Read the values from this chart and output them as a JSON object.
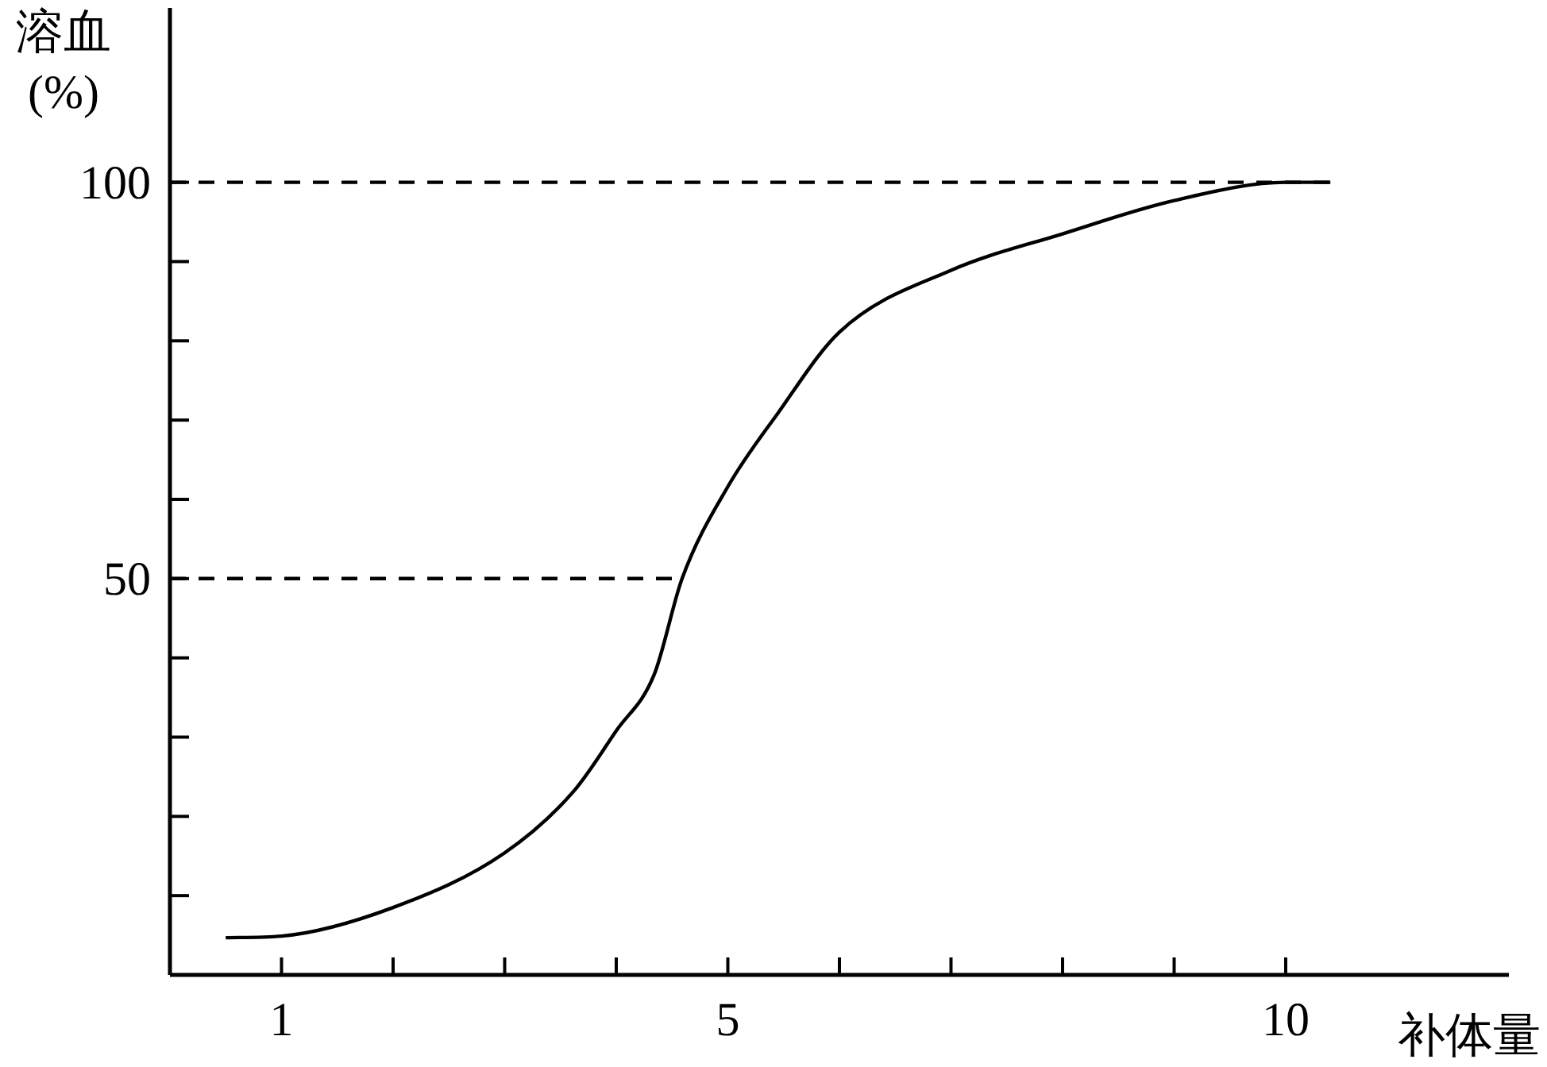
{
  "chart_data": {
    "type": "line",
    "ylabel": "溶血 (%)",
    "xlabel": "补体量",
    "xlim": [
      0,
      12
    ],
    "ylim": [
      0,
      122
    ],
    "xticks": [
      {
        "value": 1,
        "label": "1"
      },
      {
        "value": 2,
        "label": null
      },
      {
        "value": 3,
        "label": null
      },
      {
        "value": 4,
        "label": null
      },
      {
        "value": 5,
        "label": "5"
      },
      {
        "value": 6,
        "label": null
      },
      {
        "value": 7,
        "label": null
      },
      {
        "value": 8,
        "label": null
      },
      {
        "value": 9,
        "label": null
      },
      {
        "value": 10,
        "label": "10"
      }
    ],
    "yticks": [
      {
        "value": 10,
        "label": null
      },
      {
        "value": 20,
        "label": null
      },
      {
        "value": 30,
        "label": null
      },
      {
        "value": 40,
        "label": null
      },
      {
        "value": 50,
        "label": "50"
      },
      {
        "value": 60,
        "label": null
      },
      {
        "value": 70,
        "label": null
      },
      {
        "value": 80,
        "label": null
      },
      {
        "value": 90,
        "label": null
      },
      {
        "value": 100,
        "label": "100"
      }
    ],
    "grid": false,
    "marker": "none",
    "series": [
      {
        "color": "#000000",
        "line_style": "solid",
        "x": [
          0.5,
          1,
          2,
          3,
          3.62,
          4,
          4.34,
          4.59,
          5,
          5.45,
          6,
          7,
          8,
          9,
          10,
          10.4
        ],
        "values": [
          4.7,
          4.9,
          8.5,
          15.4,
          23.2,
          30.8,
          37.9,
          50,
          61.6,
          70.9,
          81.1,
          88.9,
          93.5,
          97.7,
          100,
          100
        ]
      },
      {
        "color": "#000000",
        "line_style": "dashed",
        "x": [
          0,
          10.4
        ],
        "values": [
          100,
          100
        ]
      },
      {
        "color": "#000000",
        "line_style": "dashed",
        "x": [
          0,
          4.59
        ],
        "values": [
          50,
          50
        ]
      }
    ]
  }
}
